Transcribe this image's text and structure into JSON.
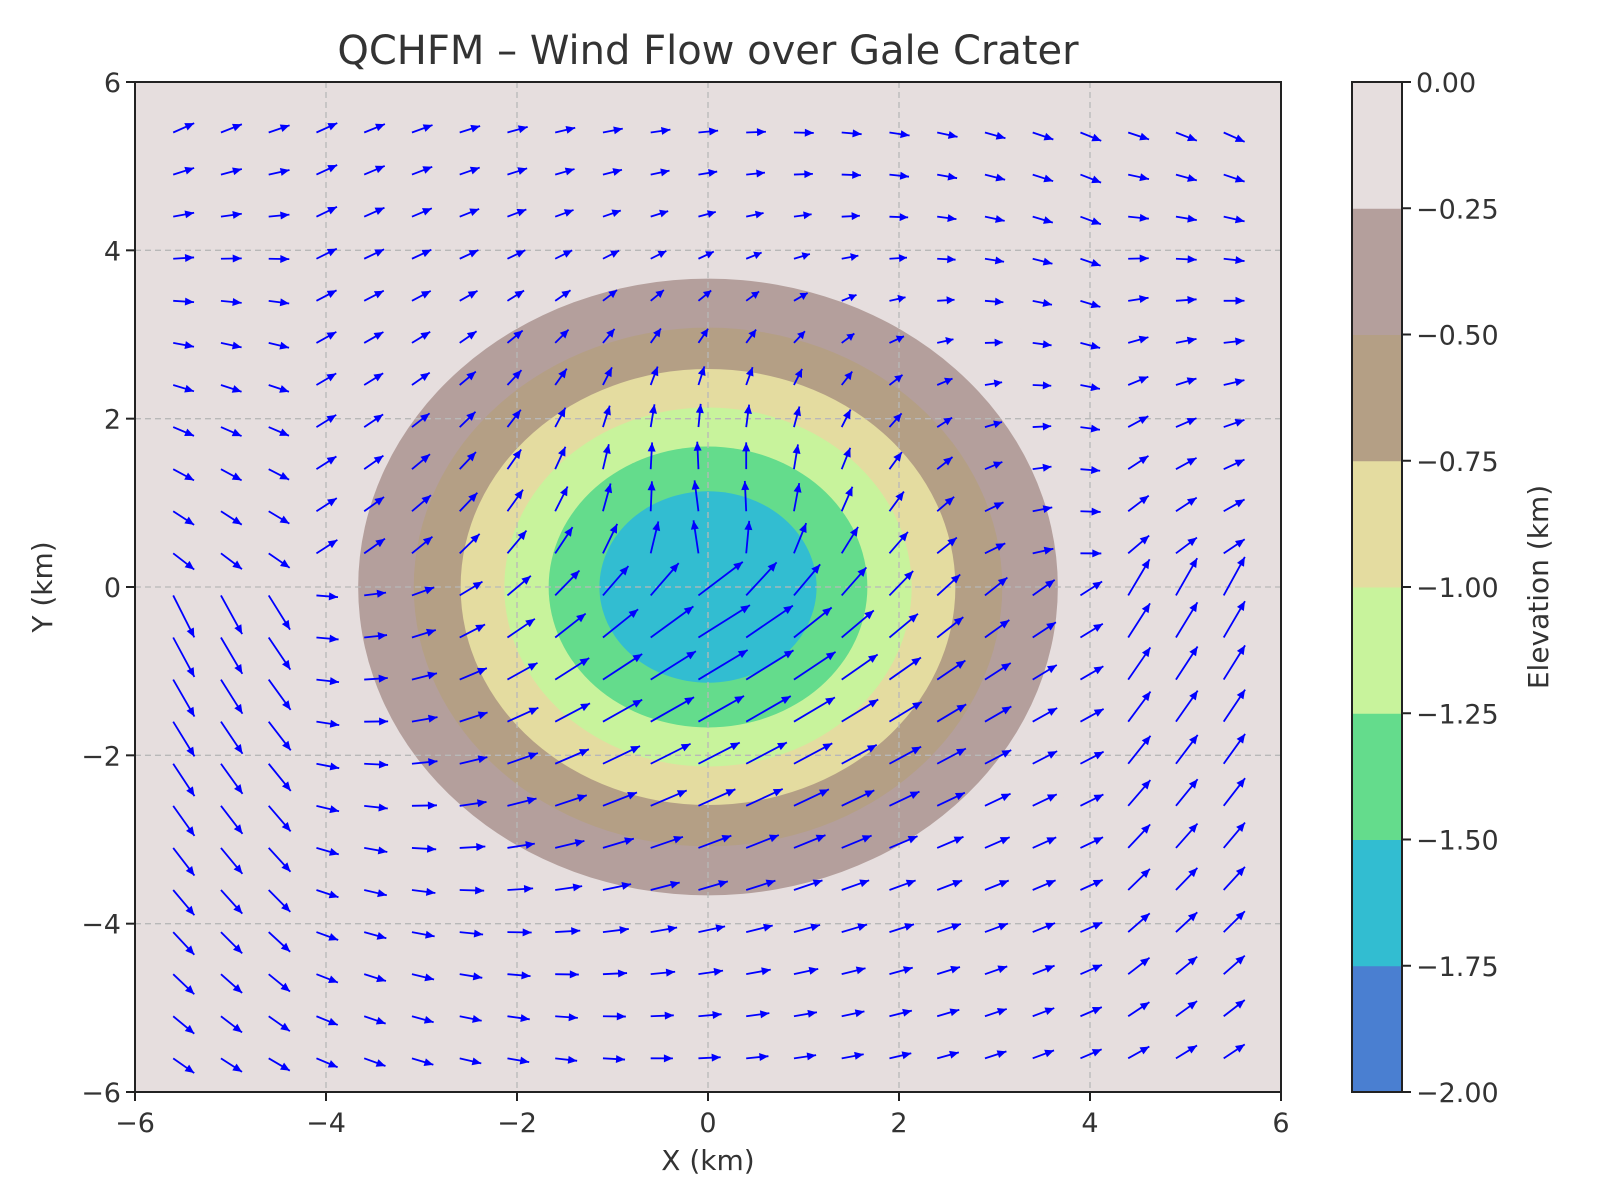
{
  "chart_data": {
    "type": "contour",
    "title": "QCHFM – Wind Flow over Gale Crater",
    "xlabel": "X (km)",
    "ylabel": "Y (km)",
    "xlim": [
      -6,
      6
    ],
    "ylim": [
      -6,
      6
    ],
    "xticks": [
      -6,
      -4,
      -2,
      0,
      2,
      4,
      6
    ],
    "yticks": [
      -6,
      -4,
      -2,
      0,
      2,
      4,
      6
    ],
    "xtick_labels": [
      "−6",
      "−4",
      "−2",
      "0",
      "2",
      "4",
      "6"
    ],
    "ytick_labels": [
      "−6",
      "−4",
      "−2",
      "0",
      "2",
      "4",
      "6"
    ],
    "grid": true,
    "elevation": {
      "model": "gaussian",
      "depth": 2.0,
      "sigma": 2.2,
      "center": [
        0,
        0
      ]
    },
    "levels": [
      -2.0,
      -1.75,
      -1.5,
      -1.25,
      -1.0,
      -0.75,
      -0.5,
      -0.25,
      0.0
    ],
    "level_colors": [
      "#4a7fd1",
      "#32bdd1",
      "#64dc8c",
      "#c8f39c",
      "#e4dca0",
      "#b49f85",
      "#b49f9c",
      "#e6dede"
    ],
    "colorbar": {
      "label": "Elevation (km)",
      "tick_labels": [
        "−2.00",
        "−1.75",
        "−1.50",
        "−1.25",
        "−1.00",
        "−0.75",
        "−0.50",
        "−0.25",
        "0.00"
      ]
    },
    "quiver": {
      "color": "#0000ff",
      "x_start": -5.6,
      "x_step": 0.5,
      "x_count": 23,
      "y_start": -5.6,
      "y_step": 0.5,
      "y_count": 23,
      "background_u": 0.35,
      "crater_swirl_u": 0.55,
      "crater_v": 0.35
    }
  }
}
